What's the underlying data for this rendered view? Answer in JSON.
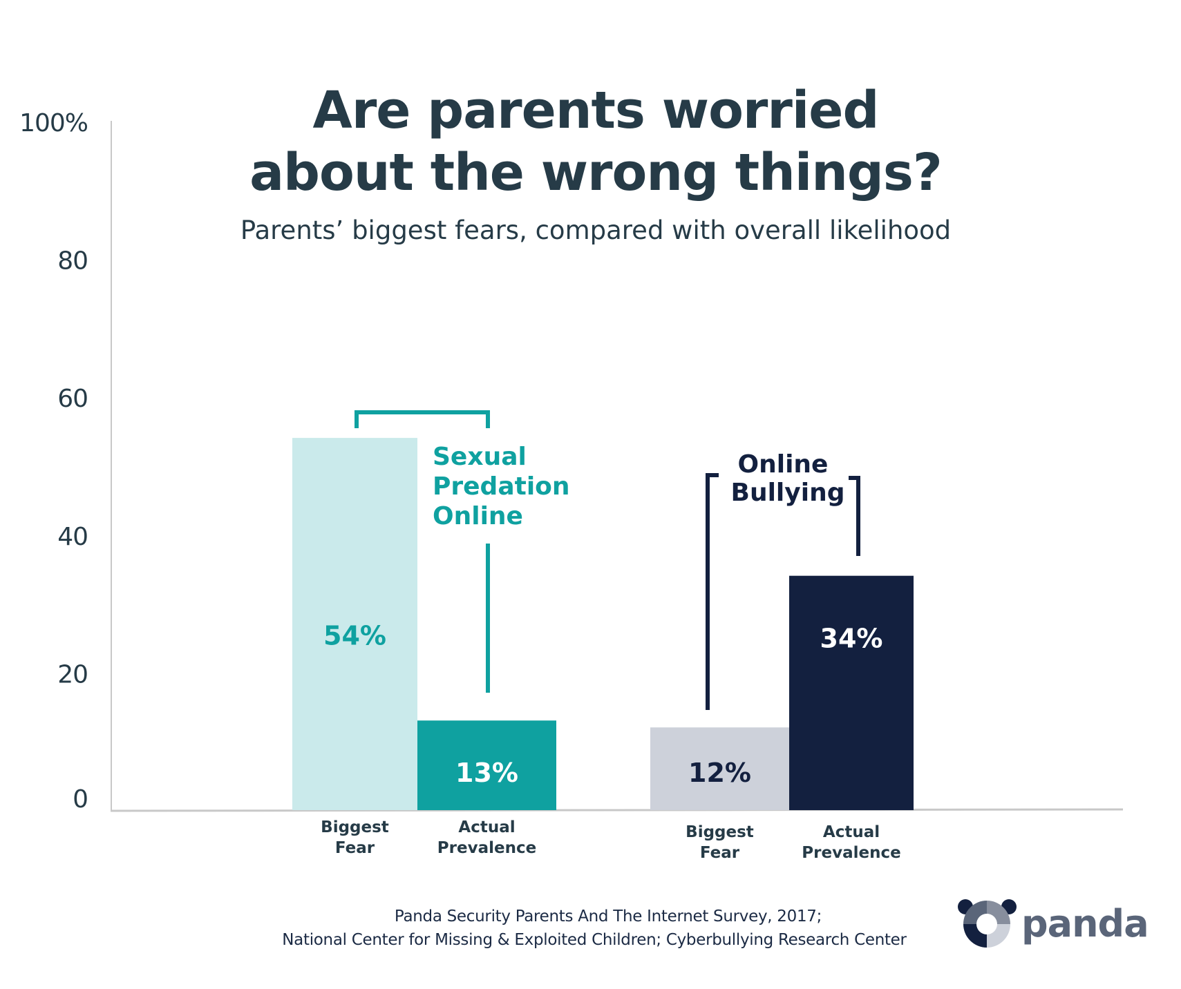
{
  "chart_data": {
    "type": "bar",
    "title_lines": [
      "Are parents worried",
      "about the wrong things?"
    ],
    "subtitle": "Parents’ biggest fears, compared with overall likelihood",
    "xlabel": "",
    "ylabel": "",
    "ylim": [
      0,
      100
    ],
    "y_ticks": [
      {
        "value": 0,
        "label": "0"
      },
      {
        "value": 20,
        "label": "20"
      },
      {
        "value": 40,
        "label": "40"
      },
      {
        "value": 60,
        "label": "60"
      },
      {
        "value": 80,
        "label": "80"
      },
      {
        "value": 100,
        "label": "100%"
      }
    ],
    "grid": false,
    "groups": [
      {
        "name_lines": [
          "Sexual",
          "Predation",
          "Online"
        ],
        "color": "#0fa1a0",
        "bars": [
          {
            "category_lines": [
              "Biggest",
              "Fear"
            ],
            "value": 54,
            "label": "54%",
            "fill": "#caeaeb",
            "label_color": "#0fa1a0"
          },
          {
            "category_lines": [
              "Actual",
              "Prevalence"
            ],
            "value": 13,
            "label": "13%",
            "fill": "#0fa1a0",
            "label_color": "#ffffff"
          }
        ]
      },
      {
        "name_lines": [
          "Online",
          "Bullying"
        ],
        "color": "#13203f",
        "bars": [
          {
            "category_lines": [
              "Biggest",
              "Fear"
            ],
            "value": 12,
            "label": "12%",
            "fill": "#cdd1da",
            "label_color": "#13203f"
          },
          {
            "category_lines": [
              "Actual",
              "Prevalence"
            ],
            "value": 34,
            "label": "34%",
            "fill": "#13203f",
            "label_color": "#ffffff"
          }
        ]
      }
    ]
  },
  "colors": {
    "text_dark": "#263b47",
    "axis": "#c8c8c8",
    "teal": "#0fa1a0",
    "navy": "#13203f"
  },
  "footer": {
    "source_lines": [
      "Panda Security Parents And The Internet Survey, 2017;",
      "National Center for Missing & Exploited Children; Cyberbullying Research Center"
    ],
    "logo": {
      "icon": "panda-logo-icon",
      "text": "panda"
    }
  }
}
